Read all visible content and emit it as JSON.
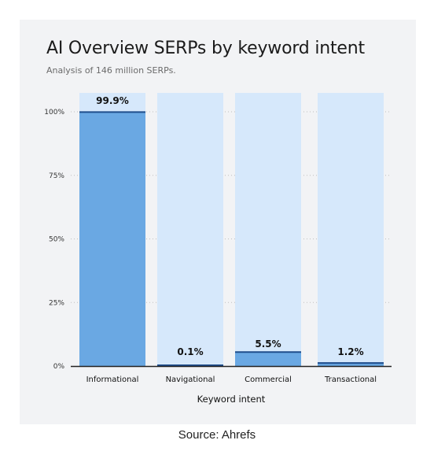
{
  "header": {
    "title": "AI Overview SERPs by keyword intent",
    "subtitle": "Analysis of 146 million SERPs."
  },
  "footer": {
    "source": "Source: Ahrefs"
  },
  "colors": {
    "card_background": "#f2f3f5",
    "bar_background": "#d6e8fb",
    "bar_fill": "#6aa8e3",
    "bar_top_line": "#1f4e8c",
    "axis": "#222222",
    "grid": "#bfbfbf"
  },
  "chart_data": {
    "type": "bar",
    "categories": [
      "Informational",
      "Navigational",
      "Commercial",
      "Transactional"
    ],
    "values": [
      99.9,
      0.1,
      5.5,
      1.2
    ],
    "data_labels": [
      "99.9%",
      "0.1%",
      "5.5%",
      "1.2%"
    ],
    "title": "AI Overview SERPs by keyword intent",
    "subtitle": "Analysis of 146 million SERPs.",
    "xlabel": "Keyword intent",
    "ylabel": "",
    "ylim": [
      0,
      100
    ],
    "yticks": [
      0,
      25,
      50,
      75,
      100
    ],
    "ytick_labels": [
      "0%",
      "25%",
      "50%",
      "75%",
      "100%"
    ],
    "grid": true,
    "legend": "none"
  }
}
